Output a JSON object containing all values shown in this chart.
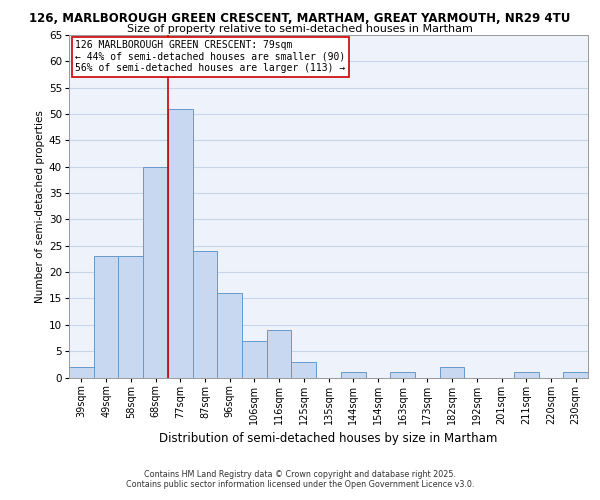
{
  "title_line1": "126, MARLBOROUGH GREEN CRESCENT, MARTHAM, GREAT YARMOUTH, NR29 4TU",
  "title_line2": "Size of property relative to semi-detached houses in Martham",
  "categories": [
    "39sqm",
    "49sqm",
    "58sqm",
    "68sqm",
    "77sqm",
    "87sqm",
    "96sqm",
    "106sqm",
    "116sqm",
    "125sqm",
    "135sqm",
    "144sqm",
    "154sqm",
    "163sqm",
    "173sqm",
    "182sqm",
    "192sqm",
    "201sqm",
    "211sqm",
    "220sqm",
    "230sqm"
  ],
  "values": [
    2,
    23,
    23,
    40,
    51,
    24,
    16,
    7,
    9,
    3,
    0,
    1,
    0,
    1,
    0,
    2,
    0,
    0,
    1,
    0,
    1
  ],
  "bar_color": "#c8d8f0",
  "bar_edge_color": "#6699cc",
  "highlight_bar_index": 4,
  "highlight_line_color": "#cc0000",
  "ylabel": "Number of semi-detached properties",
  "xlabel": "Distribution of semi-detached houses by size in Martham",
  "ylim": [
    0,
    65
  ],
  "yticks": [
    0,
    5,
    10,
    15,
    20,
    25,
    30,
    35,
    40,
    45,
    50,
    55,
    60,
    65
  ],
  "annotation_title": "126 MARLBOROUGH GREEN CRESCENT: 79sqm",
  "annotation_line1": "← 44% of semi-detached houses are smaller (90)",
  "annotation_line2": "56% of semi-detached houses are larger (113) →",
  "footer_line1": "Contains HM Land Registry data © Crown copyright and database right 2025.",
  "footer_line2": "Contains public sector information licensed under the Open Government Licence v3.0.",
  "grid_color": "#c8d4e8",
  "background_color": "#eef2fb"
}
